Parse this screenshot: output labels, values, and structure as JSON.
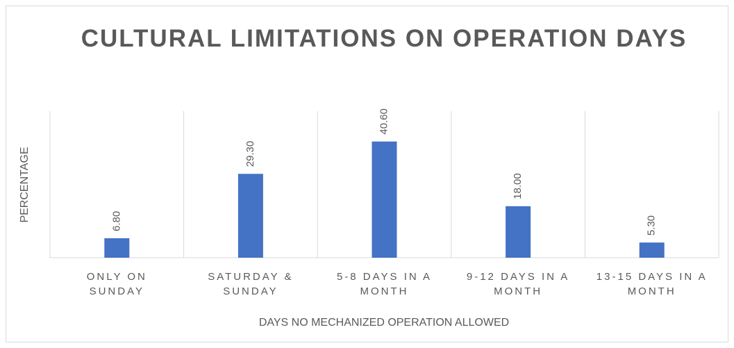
{
  "chart_data": {
    "type": "bar",
    "title": "CULTURAL LIMITATIONS ON OPERATION DAYS",
    "x_label": "DAYS NO MECHANIZED OPERATION ALLOWED",
    "y_label": "PERCENTAGE",
    "categories": [
      "ONLY ON SUNDAY",
      "SATURDAY & SUNDAY",
      "5-8 DAYS IN A MONTH",
      "9-12 DAYS IN A MONTH",
      "13-15 DAYS IN A MONTH"
    ],
    "values": [
      6.8,
      29.3,
      40.6,
      18.0,
      5.3
    ],
    "value_labels": [
      "6.80",
      "29.30",
      "40.60",
      "18.00",
      "5.30"
    ],
    "color": "#4472c4",
    "ylim": [
      0,
      50
    ]
  }
}
